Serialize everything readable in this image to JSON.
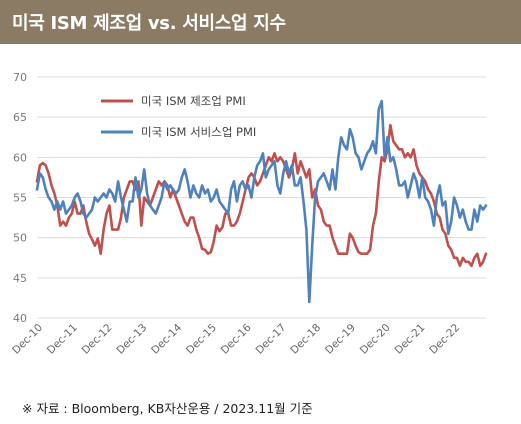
{
  "header": {
    "title": "미국 ISM 제조업 vs. 서비스업 지수"
  },
  "footer": {
    "source": "※ 자료 : Bloomberg, KB자산운용 / 2023.11월 기준"
  },
  "chart_data": {
    "type": "line",
    "title": "",
    "xlabel": "",
    "ylabel": "",
    "ylim": [
      40,
      70
    ],
    "yticks": [
      40,
      45,
      50,
      55,
      60,
      65,
      70
    ],
    "xticks": [
      "Dec-10",
      "Dec-11",
      "Dec-12",
      "Dec-13",
      "Dec-14",
      "Dec-15",
      "Dec-16",
      "Dec-17",
      "Dec-18",
      "Dec-19",
      "Dec-20",
      "Dec-21",
      "Dec-22"
    ],
    "x_start": "2010-12",
    "grid": "horizontal",
    "legend_position": "top-left",
    "series": [
      {
        "name": "미국 ISM 제조업 PMI",
        "color": "#c0504d",
        "values": [
          57.0,
          59.0,
          59.3,
          59.0,
          58.0,
          56.5,
          55.5,
          54.0,
          51.5,
          52.0,
          51.5,
          52.5,
          53.0,
          54.5,
          53.0,
          53.0,
          54.0,
          52.0,
          50.5,
          49.8,
          49.0,
          49.9,
          48.0,
          51.0,
          53.0,
          54.0,
          51.0,
          51.0,
          51.0,
          52.5,
          55.0,
          56.0,
          57.0,
          57.0,
          56.0,
          57.0,
          51.5,
          55.0,
          54.5,
          54.0,
          55.0,
          56.0,
          57.0,
          56.5,
          57.0,
          56.5,
          55.0,
          56.0,
          55.0,
          54.0,
          53.0,
          52.0,
          51.5,
          52.5,
          52.5,
          51.0,
          50.0,
          48.6,
          48.5,
          48.0,
          48.2,
          49.5,
          51.5,
          50.8,
          51.3,
          53.0,
          53.0,
          51.5,
          51.5,
          52.0,
          53.0,
          54.5,
          56.0,
          57.5,
          58.0,
          57.5,
          56.5,
          57.0,
          58.0,
          59.0,
          60.0,
          59.5,
          60.5,
          59.5,
          60.0,
          59.5,
          58.5,
          57.5,
          58.5,
          60.5,
          58.0,
          59.5,
          58.5,
          57.5,
          58.5,
          55.0,
          56.0,
          54.0,
          53.5,
          52.0,
          51.5,
          51.5,
          50.0,
          49.0,
          48.0,
          48.0,
          48.0,
          48.0,
          50.5,
          50.0,
          49.0,
          48.2,
          48.0,
          48.0,
          48.0,
          48.5,
          51.5,
          53.0,
          57.0,
          60.0,
          59.5,
          61.0,
          64.0,
          62.0,
          61.5,
          61.0,
          61.0,
          60.0,
          60.5,
          60.0,
          61.0,
          59.0,
          58.0,
          57.5,
          57.0,
          56.0,
          55.5,
          54.5,
          53.0,
          52.5,
          51.0,
          50.5,
          49.0,
          48.5,
          47.5,
          47.5,
          46.5,
          47.5,
          47.0,
          47.0,
          46.5,
          47.5,
          48.0,
          46.5,
          47.0,
          48.0
        ]
      },
      {
        "name": "미국 ISM 서비스업 PMI",
        "color": "#4f81bd",
        "values": [
          56.0,
          58.0,
          57.5,
          56.0,
          55.0,
          54.5,
          53.5,
          54.5,
          53.5,
          54.5,
          53.0,
          53.5,
          54.0,
          55.0,
          55.5,
          54.5,
          53.0,
          52.5,
          53.0,
          53.5,
          55.0,
          54.5,
          55.0,
          55.5,
          55.0,
          56.0,
          55.5,
          54.5,
          57.0,
          55.0,
          53.5,
          52.0,
          54.5,
          54.5,
          57.5,
          55.0,
          56.0,
          58.5,
          55.5,
          54.0,
          53.5,
          53.0,
          54.0,
          55.0,
          57.0,
          56.0,
          56.5,
          56.0,
          55.5,
          56.0,
          57.5,
          58.5,
          57.0,
          55.0,
          56.5,
          55.5,
          55.0,
          56.5,
          55.5,
          56.0,
          54.5,
          55.0,
          56.0,
          54.5,
          54.0,
          53.5,
          53.0,
          56.0,
          57.0,
          54.5,
          56.5,
          57.0,
          56.0,
          56.5,
          55.0,
          57.5,
          59.0,
          59.5,
          60.5,
          57.5,
          58.5,
          59.0,
          59.5,
          56.5,
          55.5,
          58.0,
          59.5,
          58.0,
          59.0,
          56.5,
          56.5,
          57.5,
          54.5,
          51.0,
          42.0,
          49.0,
          55.0,
          57.0,
          57.5,
          58.0,
          57.0,
          56.0,
          58.5,
          56.0,
          60.0,
          62.5,
          61.5,
          61.0,
          63.5,
          62.5,
          60.5,
          60.0,
          58.5,
          59.5,
          60.5,
          61.0,
          62.0,
          60.5,
          66.0,
          67.0,
          60.0,
          62.5,
          59.5,
          60.0,
          58.5,
          56.5,
          56.5,
          57.0,
          55.0,
          56.5,
          58.0,
          57.0,
          55.0,
          57.5,
          55.0,
          54.5,
          53.5,
          51.5,
          55.0,
          56.5,
          54.0,
          54.5,
          50.5,
          52.0,
          55.0,
          54.0,
          52.5,
          53.5,
          52.0,
          51.0,
          51.0,
          53.5,
          52.0,
          54.0,
          53.5,
          54.0
        ]
      }
    ]
  }
}
